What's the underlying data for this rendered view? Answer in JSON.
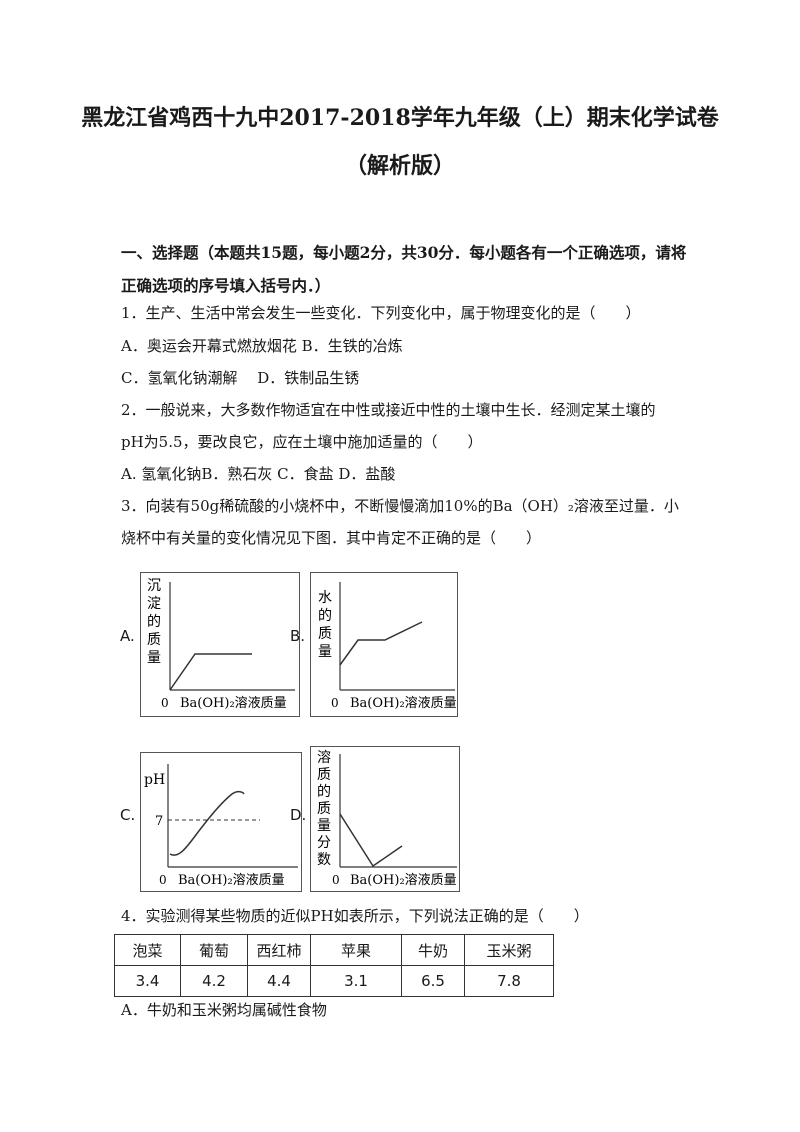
{
  "title_line1": "黑龙江省鸡西十九中2017-2018学年九年级（上）期末化学试卷",
  "title_line2": "（解析版）",
  "section_heading_1": "一、选择题（本题共15题，每小题2分，共30分．每小题各有一个正确选项，请将",
  "section_heading_2": "正确选项的序号填入括号内．）",
  "q1": {
    "stem": "1．生产、生活中常会发生一些变化．下列变化中，属于物理变化的是（　　）",
    "options_line1": "A．奥运会开幕式燃放烟花 B．生铁的冶炼",
    "options_line2": "C．氢氧化钠潮解　 D．铁制品生锈"
  },
  "q2": {
    "stem_1": "2．一般说来，大多数作物适宜在中性或接近中性的土壤中生长．经测定某土壤的",
    "stem_2": "pH为5.5，要改良它，应在土壤中施加适量的（　　）",
    "options": "A. 氢氧化钠B．熟石灰 C．食盐 D．盐酸"
  },
  "q3": {
    "stem_1": "3．向装有50g稀硫酸的小烧杯中，不断慢慢滴加10%的Ba（OH）₂溶液至过量．小",
    "stem_2": "烧杯中有关量的变化情况见下图．其中肯定不正确的是（　　）",
    "graphs": [
      {
        "label": "A.",
        "ylabel": "沉淀的质量",
        "origin": "0",
        "xlabel": "Ba(OH)₂溶液质量"
      },
      {
        "label": "B.",
        "ylabel": "水的质量",
        "origin": "0",
        "xlabel": "Ba(OH)₂溶液质量"
      },
      {
        "label": "C.",
        "ylabel": "pH",
        "mark": "7",
        "origin": "0",
        "xlabel": "Ba(OH)₂溶液质量"
      },
      {
        "label": "D.",
        "ylabel": "溶质的质量分数",
        "origin": "0",
        "xlabel": "Ba(OH)₂溶液质量"
      }
    ]
  },
  "q4": {
    "stem": "4．实验测得某些物质的近似PH如表所示，下列说法正确的是（　　）",
    "table_headers": [
      "泡菜",
      "葡萄",
      "西红柿",
      "苹果",
      "牛奶",
      "玉米粥"
    ],
    "table_values": [
      "3.4",
      "4.2",
      "4.4",
      "3.1",
      "6.5",
      "7.8"
    ],
    "option_a": "A．牛奶和玉米粥均属碱性食物"
  }
}
